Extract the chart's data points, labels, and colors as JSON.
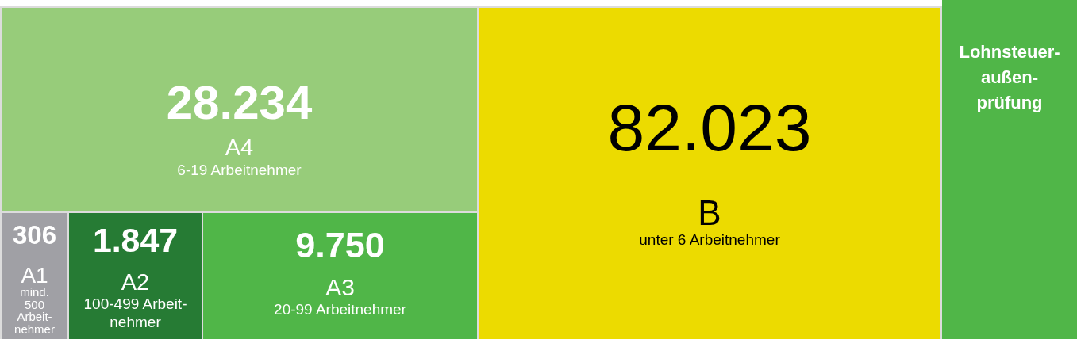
{
  "chart_data": {
    "type": "other",
    "title": "Lohnsteuer-\naußen-\nprüfung",
    "categories": [
      "A1\nmind.\n500\nArbeit-\nnehmer",
      "A2\n100-499 Arbeit-\nnehmer",
      "A3\n20-99 Arbeitnehmer",
      "A4\n6-19 Arbeitnehmer",
      "B\nunter 6 Arbeitnehmer"
    ],
    "values": [
      306,
      1847,
      9750,
      28234,
      82023
    ],
    "value_labels": [
      "306",
      "1.847",
      "9.750",
      "28.234",
      "82.023"
    ],
    "data_labels": true,
    "colors": [
      "#a0a0a5",
      "#267b34",
      "#50b648",
      "#97cc7a",
      "#ecdb00"
    ]
  }
}
